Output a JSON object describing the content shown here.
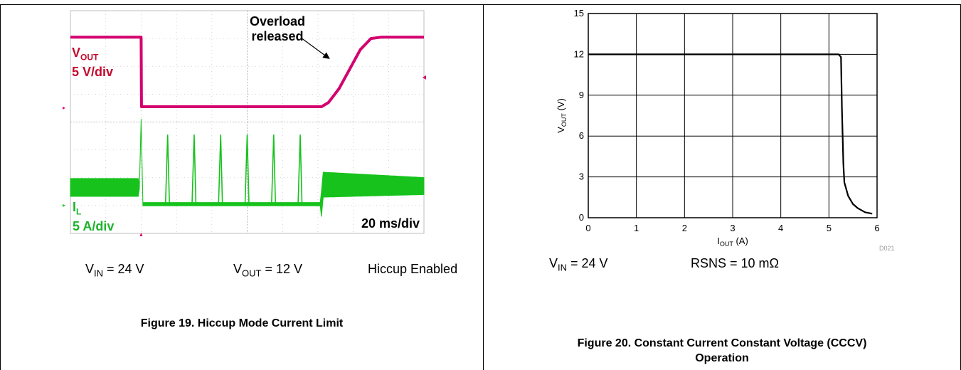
{
  "left_panel": {
    "annotation_line1": "Overload",
    "annotation_line2": "released",
    "vout_label": {
      "main": "V",
      "sub": "OUT",
      "scale": "5 V/div"
    },
    "il_label": {
      "main": "I",
      "sub": "L",
      "scale": "5 A/div"
    },
    "time_scale": "20 ms/div",
    "vout_color": "#d4006e",
    "vout_text_color": "#c40a2e",
    "il_color": "#17c21d",
    "il_text_color": "#1db32a",
    "cond_vin": {
      "main": "V",
      "sub": "IN",
      "rest": " = 24 V"
    },
    "cond_vout": {
      "main": "V",
      "sub": "OUT",
      "rest": " = 12 V"
    },
    "cond_hiccup": "Hiccup Enabled",
    "caption": "Figure 19. Hiccup Mode Current Limit"
  },
  "right_panel": {
    "ylabel": {
      "main": "V",
      "sub": "OUT",
      "rest": " (V)"
    },
    "xlabel": {
      "main": "I",
      "sub": "OUT",
      "rest": " (A)"
    },
    "tag": "D021",
    "cond_vin": {
      "main": "V",
      "sub": "IN",
      "rest": " = 24 V"
    },
    "cond_rsns": "RSNS = 10 mΩ",
    "caption_line1": "Figure 20. Constant Current Constant Voltage (CCCV)",
    "caption_line2": "Operation"
  },
  "chart_data": [
    {
      "type": "line",
      "title": "",
      "xlabel": "20 ms/div",
      "ylabel": "",
      "x_divisions": 10,
      "y_divisions": 8,
      "series": [
        {
          "name": "VOUT 5 V/div",
          "x_div": [
            0,
            2.0,
            2.01,
            7.1,
            7.3,
            7.6,
            7.9,
            8.2,
            8.5,
            8.8,
            10
          ],
          "y_div": [
            7.05,
            7.05,
            4.55,
            4.55,
            4.7,
            5.2,
            5.9,
            6.6,
            7.0,
            7.05,
            7.05
          ]
        },
        {
          "name": "IL 5 A/div",
          "x_div": [
            0,
            1.95,
            2.0,
            2.05,
            7.1,
            7.15,
            10
          ],
          "y_div": [
            1.65,
            1.65,
            4.05,
            1.05,
            1.05,
            1.75,
            1.7
          ]
        }
      ],
      "hiccup_pulses_x_div": [
        2.75,
        3.5,
        4.25,
        5.0,
        5.75,
        6.5
      ]
    },
    {
      "type": "line",
      "title": "",
      "xlabel": "IOUT (A)",
      "ylabel": "VOUT (V)",
      "xlim": [
        0,
        6
      ],
      "ylim": [
        0,
        15
      ],
      "x_ticks": [
        0,
        1,
        2,
        3,
        4,
        5,
        6
      ],
      "y_ticks": [
        0,
        3,
        6,
        9,
        12,
        15
      ],
      "grid": true,
      "series": [
        {
          "name": "",
          "x": [
            0,
            1,
            2,
            3,
            4,
            5,
            5.2,
            5.25,
            5.27,
            5.3,
            5.32,
            5.4,
            5.5,
            5.6,
            5.75,
            5.9
          ],
          "y": [
            12,
            12,
            12,
            12,
            12,
            12,
            12,
            11.8,
            8,
            4,
            2.6,
            1.6,
            1.0,
            0.7,
            0.4,
            0.3
          ]
        }
      ]
    }
  ]
}
